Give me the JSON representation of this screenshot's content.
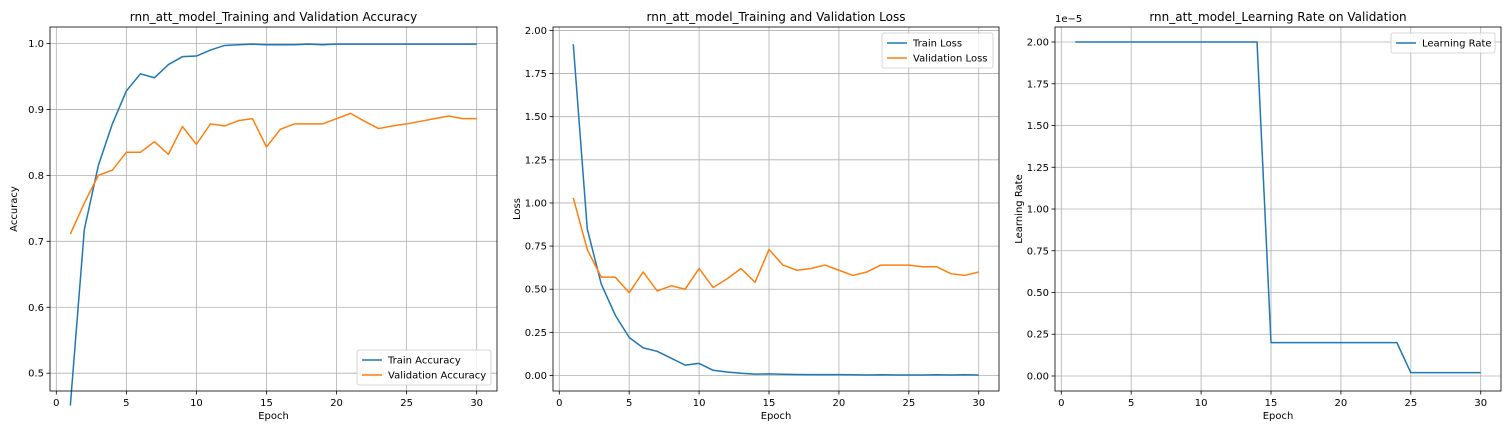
{
  "chart_data": [
    {
      "type": "line",
      "title": "rnn_att_model_Training and Validation Accuracy",
      "xlabel": "Epoch",
      "ylabel": "Accuracy",
      "xlim": [
        -0.45,
        31.45
      ],
      "ylim": [
        0.473,
        1.025
      ],
      "xticks": [
        0,
        5,
        10,
        15,
        20,
        25,
        30
      ],
      "xtick_labels": [
        "0",
        "5",
        "10",
        "15",
        "20",
        "25",
        "30"
      ],
      "yticks": [
        0.5,
        0.6,
        0.7,
        0.8,
        0.9,
        1.0
      ],
      "ytick_labels": [
        "0.5",
        "0.6",
        "0.7",
        "0.8",
        "0.9",
        "1.0"
      ],
      "y_offset_label": "",
      "grid": true,
      "legend_position": "lower-right",
      "series": [
        {
          "name": "Train Accuracy",
          "color": "#1f77b4",
          "x": [
            1,
            2,
            3,
            4,
            5,
            6,
            7,
            8,
            9,
            10,
            11,
            12,
            13,
            14,
            15,
            16,
            17,
            18,
            19,
            20,
            21,
            22,
            23,
            24,
            25,
            26,
            27,
            28,
            29,
            30
          ],
          "y": [
            0.451,
            0.718,
            0.815,
            0.878,
            0.928,
            0.954,
            0.948,
            0.968,
            0.98,
            0.981,
            0.99,
            0.997,
            0.998,
            0.999,
            0.998,
            0.998,
            0.998,
            0.999,
            0.998,
            0.999,
            0.999,
            0.999,
            0.999,
            0.999,
            0.999,
            0.999,
            0.999,
            0.999,
            0.999,
            0.999
          ]
        },
        {
          "name": "Validation Accuracy",
          "color": "#ff7f0e",
          "x": [
            1,
            2,
            3,
            4,
            5,
            6,
            7,
            8,
            9,
            10,
            11,
            12,
            13,
            14,
            15,
            16,
            17,
            18,
            19,
            20,
            21,
            22,
            23,
            24,
            25,
            26,
            27,
            28,
            29,
            30
          ],
          "y": [
            0.711,
            0.758,
            0.8,
            0.808,
            0.835,
            0.835,
            0.851,
            0.832,
            0.874,
            0.847,
            0.878,
            0.875,
            0.883,
            0.886,
            0.843,
            0.87,
            0.878,
            0.878,
            0.878,
            0.886,
            0.894,
            0.882,
            0.871,
            0.875,
            0.878,
            0.882,
            0.886,
            0.89,
            0.886,
            0.886
          ]
        }
      ]
    },
    {
      "type": "line",
      "title": "rnn_att_model_Training and Validation Loss",
      "xlabel": "Epoch",
      "ylabel": "Loss",
      "xlim": [
        -0.45,
        31.45
      ],
      "ylim": [
        -0.09,
        2.02
      ],
      "xticks": [
        0,
        5,
        10,
        15,
        20,
        25,
        30
      ],
      "xtick_labels": [
        "0",
        "5",
        "10",
        "15",
        "20",
        "25",
        "30"
      ],
      "yticks": [
        0,
        0.25,
        0.5,
        0.75,
        1.0,
        1.25,
        1.5,
        1.75,
        2.0
      ],
      "ytick_labels": [
        "0.00",
        "0.25",
        "0.50",
        "0.75",
        "1.00",
        "1.25",
        "1.50",
        "1.75",
        "2.00"
      ],
      "y_offset_label": "",
      "grid": true,
      "legend_position": "upper-right",
      "series": [
        {
          "name": "Train Loss",
          "color": "#1f77b4",
          "x": [
            1,
            2,
            3,
            4,
            5,
            6,
            7,
            8,
            9,
            10,
            11,
            12,
            13,
            14,
            15,
            16,
            17,
            18,
            19,
            20,
            21,
            22,
            23,
            24,
            25,
            26,
            27,
            28,
            29,
            30
          ],
          "y": [
            1.92,
            0.85,
            0.53,
            0.35,
            0.22,
            0.16,
            0.14,
            0.1,
            0.06,
            0.07,
            0.03,
            0.02,
            0.013,
            0.008,
            0.009,
            0.007,
            0.006,
            0.005,
            0.005,
            0.005,
            0.004,
            0.003,
            0.004,
            0.003,
            0.003,
            0.003,
            0.004,
            0.003,
            0.004,
            0.003
          ]
        },
        {
          "name": "Validation Loss",
          "color": "#ff7f0e",
          "x": [
            1,
            2,
            3,
            4,
            5,
            6,
            7,
            8,
            9,
            10,
            11,
            12,
            13,
            14,
            15,
            16,
            17,
            18,
            19,
            20,
            21,
            22,
            23,
            24,
            25,
            26,
            27,
            28,
            29,
            30
          ],
          "y": [
            1.03,
            0.73,
            0.57,
            0.57,
            0.48,
            0.6,
            0.49,
            0.52,
            0.5,
            0.62,
            0.51,
            0.56,
            0.62,
            0.54,
            0.73,
            0.64,
            0.61,
            0.62,
            0.64,
            0.61,
            0.58,
            0.6,
            0.64,
            0.64,
            0.64,
            0.63,
            0.63,
            0.59,
            0.58,
            0.6
          ]
        }
      ]
    },
    {
      "type": "line",
      "title": "rnn_att_model_Learning Rate on Validation",
      "xlabel": "Epoch",
      "ylabel": "Learning Rate",
      "xlim": [
        -0.45,
        31.45
      ],
      "ylim": [
        -8.99e-07,
        2.09e-05
      ],
      "xticks": [
        0,
        5,
        10,
        15,
        20,
        25,
        30
      ],
      "xtick_labels": [
        "0",
        "5",
        "10",
        "15",
        "20",
        "25",
        "30"
      ],
      "yticks": [
        0,
        2.5e-06,
        5e-06,
        7.5e-06,
        1e-05,
        1.25e-05,
        1.5e-05,
        1.75e-05,
        2e-05
      ],
      "ytick_labels": [
        "0.00",
        "0.25",
        "0.50",
        "0.75",
        "1.00",
        "1.25",
        "1.50",
        "1.75",
        "2.00"
      ],
      "y_offset_label": "1e−5",
      "grid": true,
      "legend_position": "upper-right",
      "series": [
        {
          "name": "Learning Rate",
          "color": "#1f77b4",
          "x": [
            1,
            2,
            3,
            4,
            5,
            6,
            7,
            8,
            9,
            10,
            11,
            12,
            13,
            14,
            15,
            16,
            17,
            18,
            19,
            20,
            21,
            22,
            23,
            24,
            25,
            26,
            27,
            28,
            29,
            30
          ],
          "y": [
            2e-05,
            2e-05,
            2e-05,
            2e-05,
            2e-05,
            2e-05,
            2e-05,
            2e-05,
            2e-05,
            2e-05,
            2e-05,
            2e-05,
            2e-05,
            2e-05,
            2e-06,
            2e-06,
            2e-06,
            2e-06,
            2e-06,
            2e-06,
            2e-06,
            2e-06,
            2e-06,
            2e-06,
            2e-07,
            2e-07,
            2e-07,
            2e-07,
            2e-07,
            2e-07
          ]
        }
      ]
    }
  ]
}
